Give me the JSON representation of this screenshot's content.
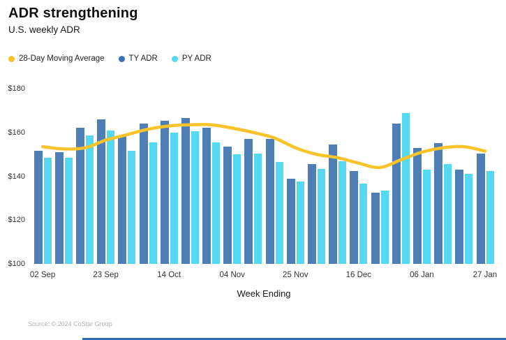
{
  "header": {
    "title": "ADR strengthening",
    "subtitle": "U.S. weekly ADR"
  },
  "legend": [
    {
      "label": "28-Day Moving Average",
      "color": "#F9C32B"
    },
    {
      "label": "TY ADR",
      "color": "#3A74B3"
    },
    {
      "label": "PY ADR",
      "color": "#55D9F2"
    }
  ],
  "footer": {
    "source": "Source: © 2024 CoStar Group",
    "accent_bar_color": "#2F6BB5"
  },
  "chart_data": {
    "type": "bar",
    "title": "ADR strengthening",
    "subtitle": "U.S. weekly ADR",
    "xlabel": "Week Ending",
    "ylabel": "",
    "ylim": [
      100,
      180
    ],
    "y_tick_labels": [
      "$180",
      "$160",
      "$140",
      "$120",
      "$100"
    ],
    "y_tick_values": [
      180,
      160,
      140,
      120,
      100
    ],
    "grid": false,
    "legend_position": "top-left",
    "categories": [
      "02 Sep",
      "09 Sep",
      "16 Sep",
      "23 Sep",
      "30 Sep",
      "07 Oct",
      "14 Oct",
      "21 Oct",
      "28 Oct",
      "04 Nov",
      "11 Nov",
      "18 Nov",
      "25 Nov",
      "02 Dec",
      "09 Dec",
      "16 Dec",
      "23 Dec",
      "30 Dec",
      "06 Jan",
      "13 Jan",
      "20 Jan",
      "27 Jan"
    ],
    "x_tick_labels": [
      "02 Sep",
      "23 Sep",
      "14 Oct",
      "04 Nov",
      "25 Nov",
      "16 Dec",
      "06 Jan",
      "27 Jan"
    ],
    "x_tick_every": 3,
    "series": [
      {
        "name": "TY ADR",
        "render": "bar",
        "color": "#4D7EB5",
        "values": [
          151.5,
          151,
          162,
          166,
          158.5,
          164,
          165.5,
          166.5,
          162,
          153.5,
          157,
          157,
          139,
          145.5,
          154.5,
          142.5,
          132.5,
          164,
          153,
          155,
          143,
          150.5
        ]
      },
      {
        "name": "PY ADR",
        "render": "bar",
        "color": "#55D9F2",
        "values": [
          148.5,
          148.5,
          158.5,
          161,
          151.5,
          155.5,
          160,
          160.5,
          155.5,
          150,
          150.5,
          146.5,
          137.5,
          143.5,
          147,
          136.5,
          133.5,
          169,
          143,
          145.5,
          141,
          142.5
        ]
      },
      {
        "name": "28-Day Moving Average",
        "render": "line",
        "color": "#F9C32B",
        "line_width": 4.5,
        "values": [
          153.5,
          152.5,
          153,
          156.5,
          159,
          161.5,
          163,
          163.5,
          163.5,
          162,
          160,
          157.5,
          153,
          150,
          148.5,
          146,
          144,
          147.5,
          151,
          153,
          153.5,
          151.5
        ]
      }
    ]
  }
}
